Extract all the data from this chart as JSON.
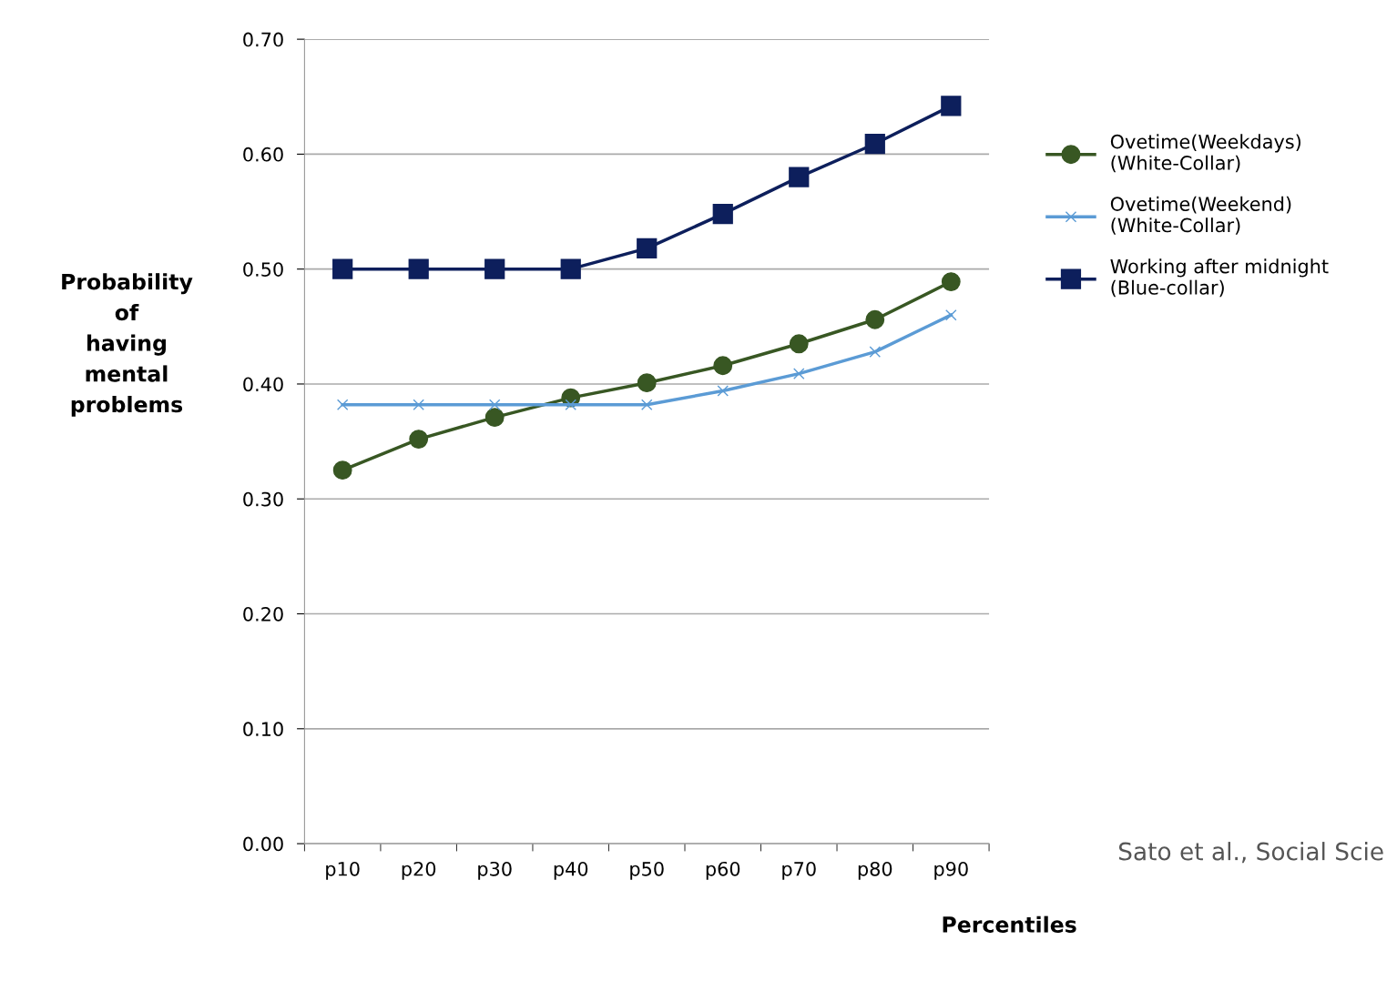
{
  "chart_data": {
    "type": "line",
    "categories": [
      "p10",
      "p20",
      "p30",
      "p40",
      "p50",
      "p60",
      "p70",
      "p80",
      "p90"
    ],
    "series": [
      {
        "name": "Ovetime(Weekdays)\n(White-Collar)",
        "color": "#385723",
        "marker": "circle",
        "values": [
          0.325,
          0.352,
          0.371,
          0.388,
          0.401,
          0.416,
          0.435,
          0.456,
          0.489
        ]
      },
      {
        "name": "Ovetime(Weekend)\n(White-Collar)",
        "color": "#5b9bd5",
        "marker": "cross",
        "values": [
          0.382,
          0.382,
          0.382,
          0.382,
          0.382,
          0.394,
          0.409,
          0.428,
          0.46
        ]
      },
      {
        "name": "Working after midnight\n(Blue-collar)",
        "color": "#0d1f5c",
        "marker": "square",
        "values": [
          0.5,
          0.5,
          0.5,
          0.5,
          0.518,
          0.548,
          0.58,
          0.609,
          0.642
        ]
      }
    ],
    "ylabel": "Probability\nof\nhaving\nmental\nproblems",
    "xlabel": "Percentiles",
    "ylim": [
      0,
      0.7
    ],
    "yticks": [
      {
        "value": 0,
        "label": "0.00"
      },
      {
        "value": 0.1,
        "label": "0.10"
      },
      {
        "value": 0.2,
        "label": "0.20"
      },
      {
        "value": 0.3,
        "label": "0.30"
      },
      {
        "value": 0.4,
        "label": "0.40"
      },
      {
        "value": 0.5,
        "label": "0.50"
      },
      {
        "value": 0.6,
        "label": "0.60"
      },
      {
        "value": 0.7,
        "label": "0.70"
      }
    ],
    "grid": "y",
    "legend": "right",
    "annotations": [
      "Sato et al., Social Scie"
    ]
  }
}
